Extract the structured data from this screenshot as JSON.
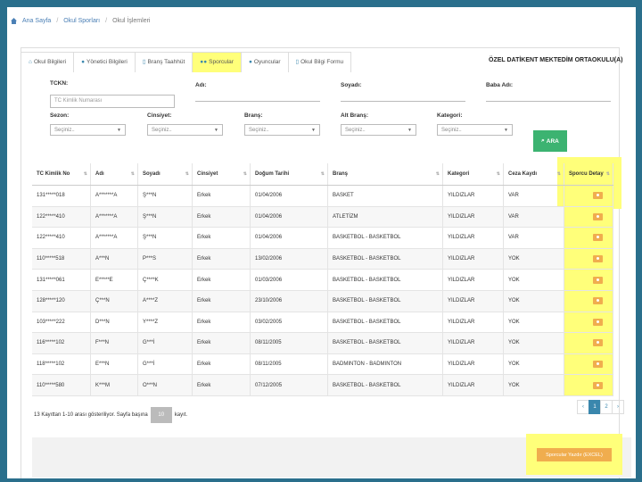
{
  "breadcrumb": {
    "home": "Ana Sayfa",
    "sep": "/",
    "item2": "Okul Sporları",
    "item3": "Okul İşlemleri"
  },
  "tabs": [
    {
      "label": "Okul Bilgileri",
      "icon": "home-icon"
    },
    {
      "label": "Yönetici Bilgileri",
      "icon": "user-icon"
    },
    {
      "label": "Branş Taahhüt",
      "icon": "doc-icon"
    },
    {
      "label": "Sporcular",
      "icon": "users-icon"
    },
    {
      "label": "Oyuncular",
      "icon": "user-icon"
    },
    {
      "label": "Okul Bilgi Formu",
      "icon": "doc-icon"
    }
  ],
  "school_name": "ÖZEL DATİKENT MEKTEDİM ORTAOKULU(A)",
  "form": {
    "tckn_label": "TCKN:",
    "tckn_placeholder": "TC Kimlik Numarası",
    "adi_label": "Adı:",
    "soyadi_label": "Soyadı:",
    "baba_label": "Baba Adı:",
    "sezon_label": "Sezon:",
    "cinsiyet_label": "Cinsiyet:",
    "brans_label": "Branş:",
    "alt_brans_label": "Alt Branş:",
    "kategori_label": "Kategori:",
    "select_placeholder": "Seçiniz..",
    "search_button": "ARA"
  },
  "table": {
    "headers": [
      "TC Kimlik No",
      "Adı",
      "Soyadı",
      "Cinsiyet",
      "Doğum Tarihi",
      "Branş",
      "Kategori",
      "Ceza Kaydı",
      "Sporcu Detay"
    ],
    "rows": [
      [
        "131*****018",
        "A*******A",
        "Ş***N",
        "Erkek",
        "01/04/2006",
        "BASKET",
        "YILDIZLAR",
        "VAR"
      ],
      [
        "122*****410",
        "A*******A",
        "Ş***N",
        "Erkek",
        "01/04/2006",
        "ATLETİZM",
        "YILDIZLAR",
        "VAR"
      ],
      [
        "122*****410",
        "A*******A",
        "Ş***N",
        "Erkek",
        "01/04/2006",
        "BASKETBOL - BASKETBOL",
        "YILDIZLAR",
        "VAR"
      ],
      [
        "110*****518",
        "A***N",
        "P***S",
        "Erkek",
        "13/02/2006",
        "BASKETBOL - BASKETBOL",
        "YILDIZLAR",
        "YOK"
      ],
      [
        "131*****061",
        "E*****E",
        "Ç****K",
        "Erkek",
        "01/03/2006",
        "BASKETBOL - BASKETBOL",
        "YILDIZLAR",
        "YOK"
      ],
      [
        "128*****120",
        "Ç***N",
        "A****Z",
        "Erkek",
        "23/10/2006",
        "BASKETBOL - BASKETBOL",
        "YILDIZLAR",
        "YOK"
      ],
      [
        "103*****222",
        "D***N",
        "Y****Z",
        "Erkek",
        "03/02/2005",
        "BASKETBOL - BASKETBOL",
        "YILDIZLAR",
        "YOK"
      ],
      [
        "116*****102",
        "F***N",
        "G***İ",
        "Erkek",
        "08/11/2005",
        "BASKETBOL - BASKETBOL",
        "YILDIZLAR",
        "YOK"
      ],
      [
        "118*****102",
        "E***N",
        "G***İ",
        "Erkek",
        "08/11/2005",
        "BADMINTON - BADMINTON",
        "YILDIZLAR",
        "YOK"
      ],
      [
        "110*****580",
        "K***M",
        "O***N",
        "Erkek",
        "07/12/2005",
        "BASKETBOL - BASKETBOL",
        "YILDIZLAR",
        "YOK"
      ]
    ]
  },
  "pagination": {
    "info_prefix": "13 Kayıttan 1-10 arası gösteriliyor. Sayfa başına",
    "page_size": "10",
    "info_suffix": "kayıt.",
    "prev": "‹",
    "pages": [
      "1",
      "2"
    ],
    "next": "›"
  },
  "excel_button": "Sporcular Yazdır (EXCEL)"
}
